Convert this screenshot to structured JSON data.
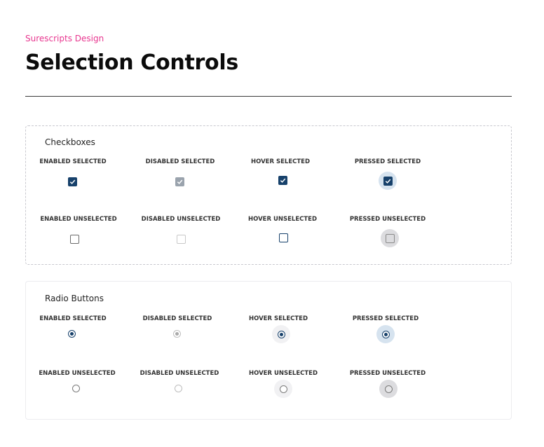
{
  "header": {
    "eyebrow": "Surescripts Design",
    "title": "Selection Controls"
  },
  "checkboxes": {
    "title": "Checkboxes",
    "selected": [
      {
        "label": "ENABLED SELECTED"
      },
      {
        "label": "DISABLED SELECTED"
      },
      {
        "label": "HOVER SELECTED"
      },
      {
        "label": "PRESSED SELECTED"
      }
    ],
    "unselected": [
      {
        "label": "ENABLED UNSELECTED"
      },
      {
        "label": "DISABLED UNSELECTED"
      },
      {
        "label": "HOVER UNSELECTED"
      },
      {
        "label": "PRESSED UNSELECTED"
      }
    ]
  },
  "radios": {
    "title": "Radio Buttons",
    "selected": [
      {
        "label": "ENABLED SELECTED"
      },
      {
        "label": "DISABLED SELECTED"
      },
      {
        "label": "HOVER SELECTED"
      },
      {
        "label": "PRESSED SELECTED"
      }
    ],
    "unselected": [
      {
        "label": "ENABLED UNSELECTED"
      },
      {
        "label": "DISABLED UNSELECTED"
      },
      {
        "label": "HOVER UNSELECTED"
      },
      {
        "label": "PRESSED UNSELECTED"
      }
    ]
  },
  "colors": {
    "accent_pink": "#e8368f",
    "primary_navy": "#17416b",
    "disabled_gray": "#9aa3ad"
  },
  "icons": {
    "checkmark": "checkmark-icon"
  }
}
